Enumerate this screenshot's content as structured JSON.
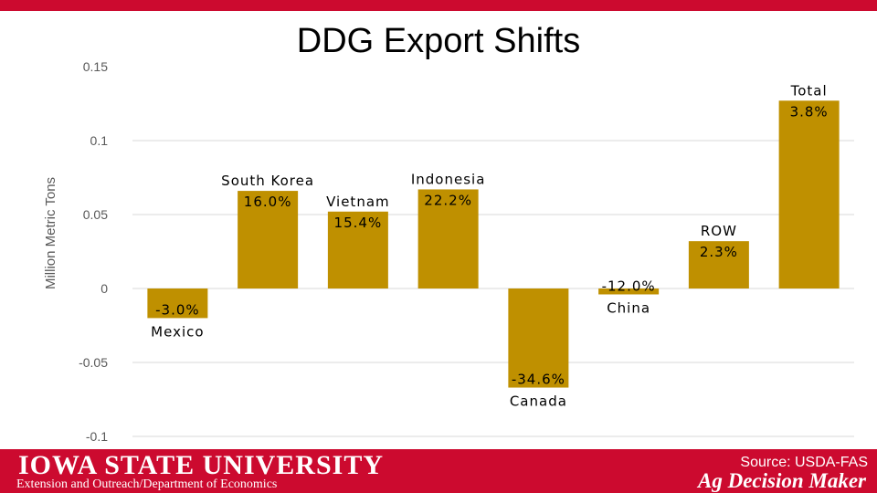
{
  "slide": {
    "title": "DDG Export Shifts"
  },
  "footer": {
    "university": "IOWA STATE UNIVERSITY",
    "department": "Extension and Outreach/Department of Economics",
    "source": "Source: USDA-FAS",
    "brand": "Ag Decision Maker"
  },
  "colors": {
    "bar": "#bf9000",
    "accent_red": "#cc0a2f",
    "grid": "#d9d9d9",
    "axis_text": "#595959"
  },
  "chart_data": {
    "type": "bar",
    "title": "DDG Export Shifts",
    "xlabel": "",
    "ylabel": "Million Metric Tons",
    "ylim": [
      -0.1,
      0.15
    ],
    "yticks": [
      0.15,
      0.1,
      0.05,
      0,
      -0.05,
      -0.1
    ],
    "ytick_labels": [
      "0.15",
      "0.1",
      "0.05",
      "0",
      "-0.05",
      "-0.1"
    ],
    "grid": true,
    "categories": [
      "Mexico",
      "South Korea",
      "Vietnam",
      "Indonesia",
      "Canada",
      "China",
      "ROW",
      "Total"
    ],
    "values": [
      -0.02,
      0.066,
      0.052,
      0.067,
      -0.067,
      -0.004,
      0.032,
      0.127
    ],
    "percent_labels": [
      "-3.0%",
      "16.0%",
      "15.4%",
      "22.2%",
      "-34.6%",
      "-12.0%",
      "2.3%",
      "3.8%"
    ]
  }
}
